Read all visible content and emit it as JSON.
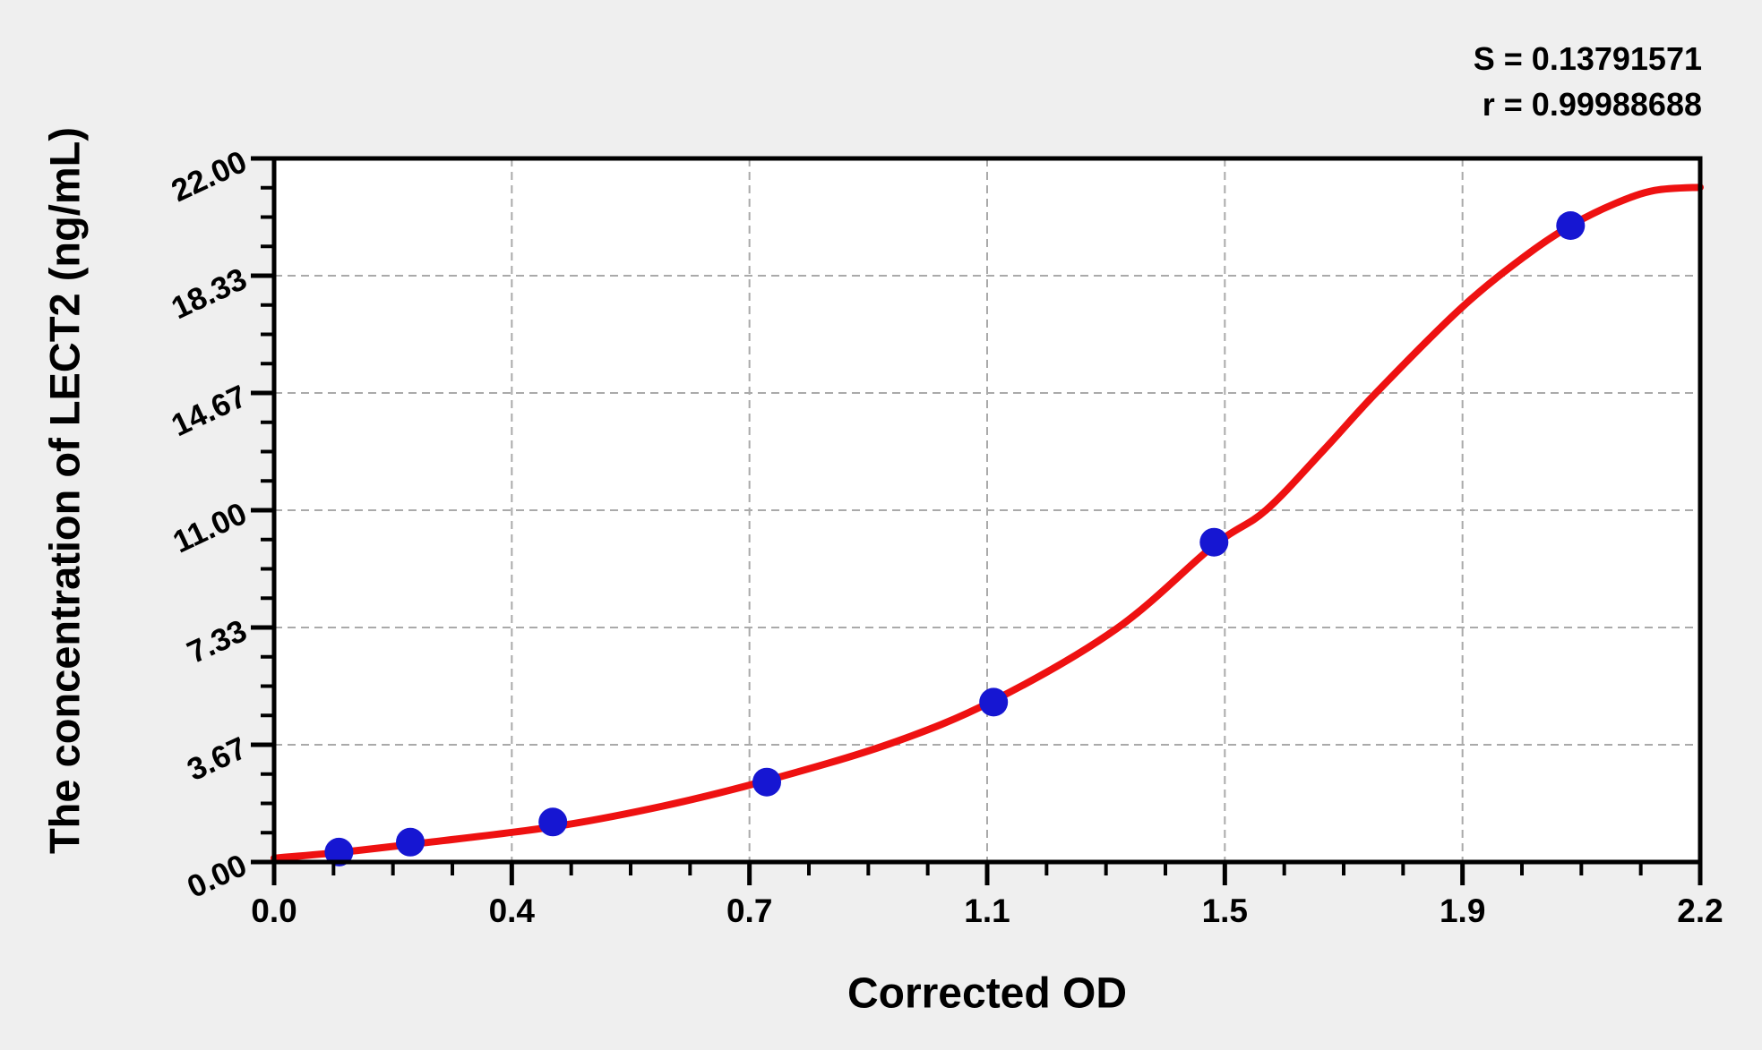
{
  "chart_data": {
    "type": "scatter",
    "title": "",
    "xlabel": "Corrected OD",
    "ylabel": "The concentration of LECT2 (ng/mL)",
    "xlim": [
      0,
      2.2
    ],
    "ylim": [
      0,
      22
    ],
    "x_major_ticks": [
      0,
      0.36667,
      0.73333,
      1.1,
      1.46667,
      1.83333,
      2.2
    ],
    "x_tick_labels": [
      "0.0",
      "0.4",
      "0.7",
      "1.1",
      "1.5",
      "1.9",
      "2.2"
    ],
    "y_major_ticks": [
      0,
      3.66667,
      7.33333,
      11,
      14.66667,
      18.33333,
      22
    ],
    "y_tick_labels": [
      "0.00",
      "3.67",
      "7.33",
      "11.00",
      "14.67",
      "18.33",
      "22.00"
    ],
    "minor_ticks_per_major": 3,
    "grid": "dashed-at-major-ticks",
    "legend": "none",
    "annotations": [
      "S = 0.13791571",
      "r = 0.99988688"
    ],
    "colors": {
      "background": "#efefef",
      "plot_background": "#ffffff",
      "axis": "#000000",
      "grid": "#aaaaaa",
      "curve": "#ee1111",
      "points": "#1616d2"
    },
    "series": [
      {
        "name": "standard-points",
        "type": "scatter",
        "color": "#1616d2",
        "points": [
          {
            "x": 0.1,
            "y": 0.31
          },
          {
            "x": 0.21,
            "y": 0.62
          },
          {
            "x": 0.43,
            "y": 1.25
          },
          {
            "x": 0.76,
            "y": 2.5
          },
          {
            "x": 1.11,
            "y": 5.0
          },
          {
            "x": 1.45,
            "y": 10.0
          },
          {
            "x": 2.0,
            "y": 19.9
          }
        ]
      },
      {
        "name": "fitted-4pl-curve",
        "type": "line",
        "color": "#ee1111",
        "points": [
          {
            "x": 0.0,
            "y": 0.12
          },
          {
            "x": 0.1,
            "y": 0.3
          },
          {
            "x": 0.21,
            "y": 0.55
          },
          {
            "x": 0.43,
            "y": 1.1
          },
          {
            "x": 0.6,
            "y": 1.75
          },
          {
            "x": 0.76,
            "y": 2.55
          },
          {
            "x": 0.95,
            "y": 3.7
          },
          {
            "x": 1.11,
            "y": 5.05
          },
          {
            "x": 1.3,
            "y": 7.3
          },
          {
            "x": 1.45,
            "y": 9.9
          },
          {
            "x": 1.53,
            "y": 11.0
          },
          {
            "x": 1.62,
            "y": 12.9
          },
          {
            "x": 1.7,
            "y": 14.67
          },
          {
            "x": 1.83,
            "y": 17.3
          },
          {
            "x": 1.93,
            "y": 18.95
          },
          {
            "x": 2.0,
            "y": 19.9
          },
          {
            "x": 2.07,
            "y": 20.6
          },
          {
            "x": 2.13,
            "y": 21.0
          },
          {
            "x": 2.2,
            "y": 21.1
          }
        ]
      }
    ]
  }
}
